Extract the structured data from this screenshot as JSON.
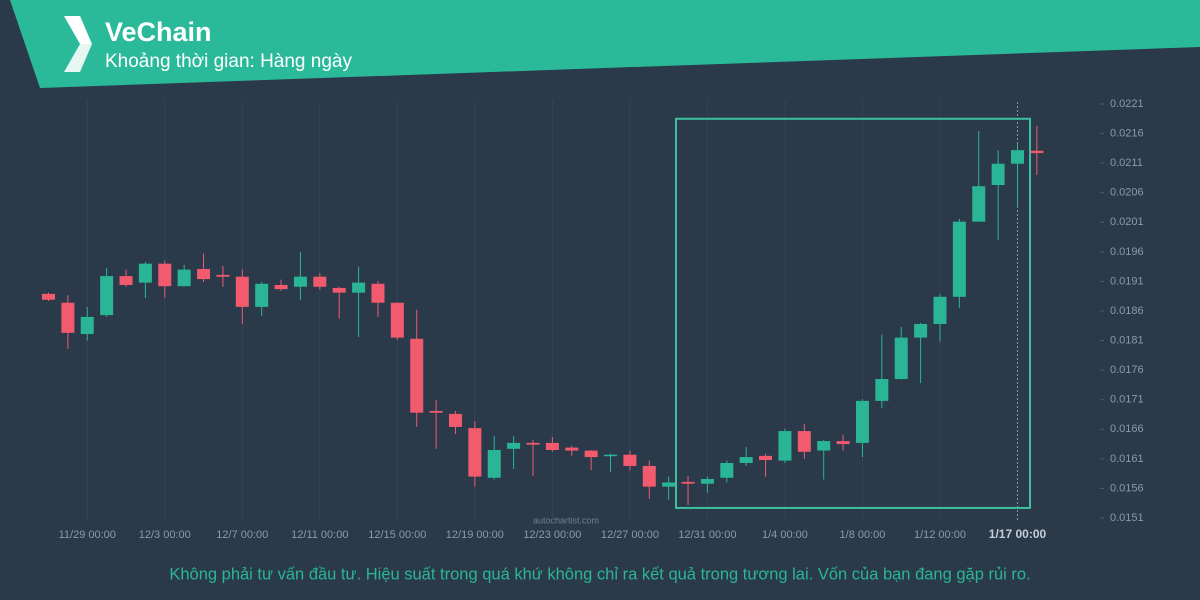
{
  "chart_data": {
    "type": "candlestick",
    "title": "VeChain",
    "subtitle": "Khoảng thời gian: Hàng ngày",
    "disclaimer": "Không phải tư vấn đầu tư. Hiệu suất trong quá khứ không chỉ ra kết quả trong tương lai. Vốn của bạn đang gặp rủi ro.",
    "watermark": "autochartist.com",
    "categories": [
      null,
      null,
      "11/29 00:00",
      null,
      null,
      null,
      "12/3 00:00",
      null,
      null,
      null,
      "12/7 00:00",
      null,
      null,
      null,
      "12/11 00:00",
      null,
      null,
      null,
      "12/15 00:00",
      null,
      null,
      null,
      "12/19 00:00",
      null,
      null,
      null,
      "12/23 00:00",
      null,
      null,
      null,
      "12/27 00:00",
      null,
      null,
      null,
      "12/31 00:00",
      null,
      null,
      null,
      "1/4 00:00",
      null,
      null,
      null,
      "1/8 00:00",
      null,
      null,
      null,
      "1/12 00:00",
      null,
      null,
      null,
      "1/17 00:00",
      null
    ],
    "open": [
      0.01889,
      0.01874,
      0.01821,
      0.01853,
      0.01919,
      0.01908,
      0.0194,
      0.01902,
      0.01931,
      0.01921,
      0.01918,
      0.01867,
      0.01904,
      0.01901,
      0.01918,
      0.01899,
      0.01891,
      0.01906,
      0.01874,
      0.01813,
      0.01691,
      0.01686,
      0.01662,
      0.01578,
      0.01627,
      0.01637,
      0.01637,
      0.01629,
      0.01624,
      0.01615,
      0.01617,
      0.01598,
      0.01563,
      0.01571,
      0.01568,
      0.01578,
      0.01603,
      0.01615,
      0.01607,
      0.01657,
      0.01624,
      0.0164,
      0.01637,
      0.01708,
      0.01745,
      0.01815,
      0.01838,
      0.01884,
      0.02011,
      0.02073,
      0.02109,
      0.02131
    ],
    "high": [
      0.01891,
      0.01887,
      0.01867,
      0.01933,
      0.0193,
      0.01943,
      0.01945,
      0.01938,
      0.01957,
      0.01936,
      0.0193,
      0.01909,
      0.01913,
      0.0196,
      0.01924,
      0.01901,
      0.01935,
      0.01911,
      0.01874,
      0.01862,
      0.0171,
      0.01691,
      0.01674,
      0.01649,
      0.01649,
      0.01642,
      0.01647,
      0.01632,
      0.01625,
      0.01619,
      0.01624,
      0.01607,
      0.0158,
      0.01581,
      0.0158,
      0.01607,
      0.0163,
      0.01619,
      0.01661,
      0.01669,
      0.01642,
      0.01651,
      0.01711,
      0.0182,
      0.01833,
      0.0184,
      0.01889,
      0.02016,
      0.02164,
      0.02132,
      0.02144,
      0.02173
    ],
    "low": [
      0.01877,
      0.01796,
      0.0181,
      0.0185,
      0.01901,
      0.01882,
      0.01882,
      0.01901,
      0.01909,
      0.01901,
      0.01838,
      0.01852,
      0.01894,
      0.01879,
      0.01896,
      0.01847,
      0.01816,
      0.0185,
      0.01811,
      0.01664,
      0.01627,
      0.01652,
      0.01563,
      0.01575,
      0.01593,
      0.01581,
      0.01622,
      0.01615,
      0.01591,
      0.01588,
      0.0159,
      0.01542,
      0.01541,
      0.01532,
      0.01553,
      0.0157,
      0.01598,
      0.0158,
      0.01603,
      0.0161,
      0.01575,
      0.01624,
      0.01613,
      0.01696,
      0.01744,
      0.01738,
      0.01808,
      0.01865,
      0.02011,
      0.0198,
      0.02036,
      0.0209
    ],
    "close": [
      0.01879,
      0.01823,
      0.0185,
      0.01919,
      0.01904,
      0.0194,
      0.01902,
      0.0193,
      0.01914,
      0.01918,
      0.01867,
      0.01906,
      0.01897,
      0.01918,
      0.01901,
      0.01891,
      0.01908,
      0.01874,
      0.01815,
      0.01688,
      0.01688,
      0.01664,
      0.0158,
      0.01625,
      0.01637,
      0.01634,
      0.01625,
      0.01624,
      0.01613,
      0.01617,
      0.01598,
      0.01563,
      0.0157,
      0.01568,
      0.01576,
      0.01603,
      0.01613,
      0.01608,
      0.01657,
      0.01622,
      0.0164,
      0.01635,
      0.01708,
      0.01745,
      0.01815,
      0.01838,
      0.01884,
      0.02011,
      0.02071,
      0.02109,
      0.02132,
      0.02127
    ],
    "up_color": "#2bb597",
    "down_color": "#f25a6e",
    "pattern": {
      "low": 0.01527,
      "high": 0.02185,
      "color": "#3cc0a0"
    },
    "ylim": [
      0.0151,
      0.0221
    ],
    "yticks": [
      0.0151,
      0.0156,
      0.0161,
      0.0166,
      0.0171,
      0.0176,
      0.0181,
      0.0186,
      0.0191,
      0.0196,
      0.0201,
      0.0206,
      0.0211,
      0.0216,
      0.0221
    ],
    "grid": true
  }
}
